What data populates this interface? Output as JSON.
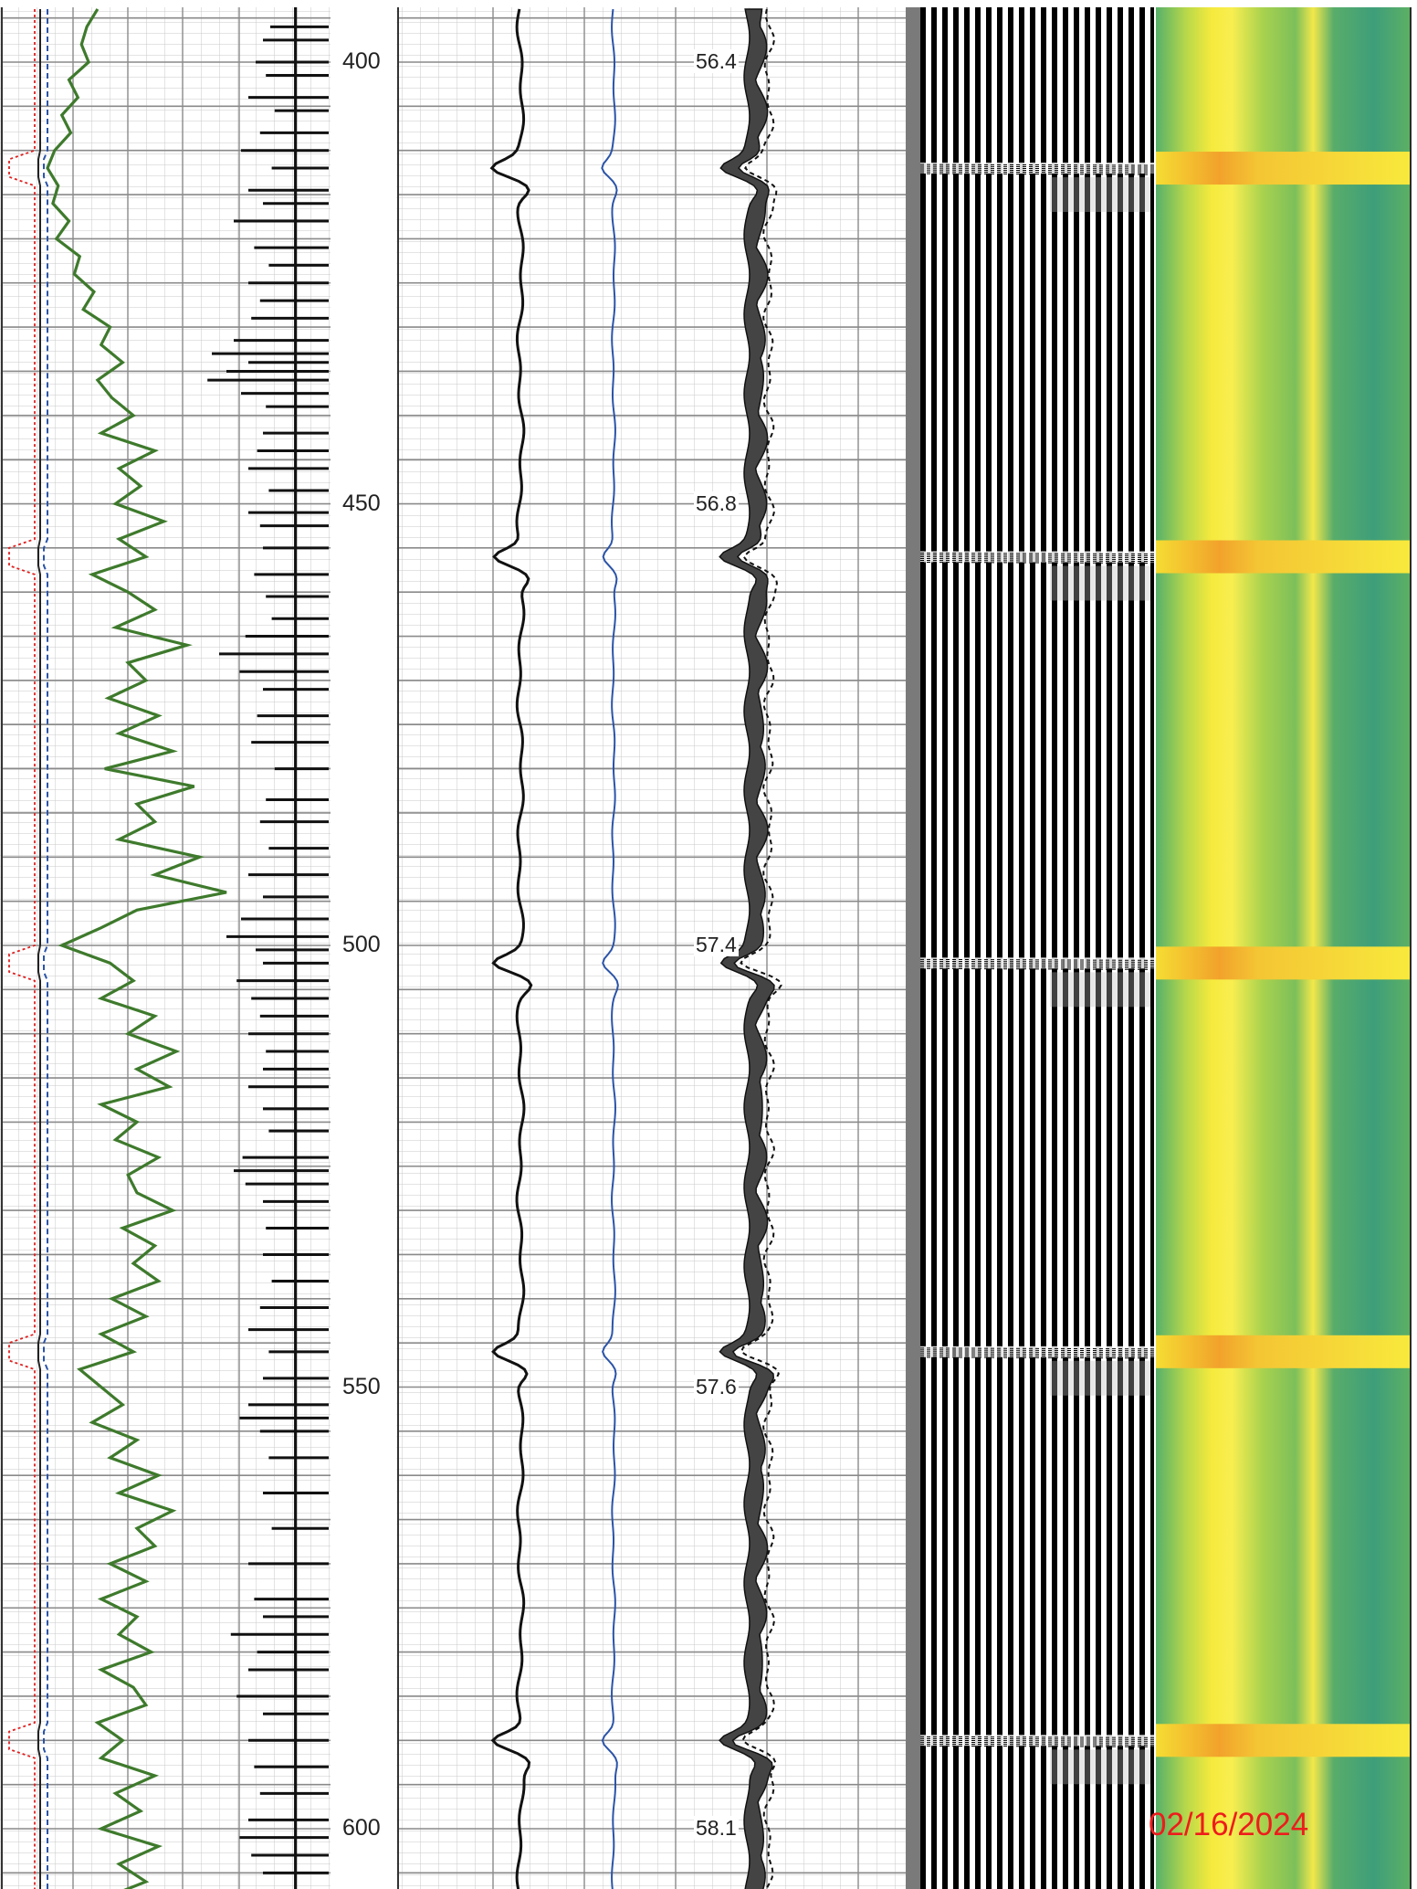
{
  "document": {
    "date_stamp": "02/16/2024",
    "date_color": "#ee1c1c"
  },
  "chart_data": {
    "type": "line",
    "depth_range": [
      394,
      614
    ],
    "depth_ticks": [
      400,
      450,
      500,
      550,
      600
    ],
    "depth_labels": [
      "400",
      "450",
      "500",
      "550",
      "600"
    ],
    "collar_depths": [
      412,
      456,
      502,
      546,
      590
    ],
    "cbl_annotations": [
      {
        "depth": 400,
        "value": "56.4"
      },
      {
        "depth": 450,
        "value": "56.8"
      },
      {
        "depth": 500,
        "value": "57.4"
      },
      {
        "depth": 550,
        "value": "57.6"
      },
      {
        "depth": 600,
        "value": "58.1"
      }
    ],
    "gamma_ray_trace": [
      [
        394,
        0.28
      ],
      [
        396,
        0.22
      ],
      [
        398,
        0.19
      ],
      [
        400,
        0.23
      ],
      [
        402,
        0.12
      ],
      [
        404,
        0.17
      ],
      [
        406,
        0.08
      ],
      [
        408,
        0.13
      ],
      [
        410,
        0.04
      ],
      [
        412,
        0.0
      ],
      [
        414,
        0.06
      ],
      [
        416,
        0.03
      ],
      [
        418,
        0.12
      ],
      [
        420,
        0.05
      ],
      [
        422,
        0.18
      ],
      [
        424,
        0.15
      ],
      [
        426,
        0.26
      ],
      [
        428,
        0.2
      ],
      [
        430,
        0.35
      ],
      [
        432,
        0.3
      ],
      [
        434,
        0.42
      ],
      [
        436,
        0.28
      ],
      [
        438,
        0.36
      ],
      [
        440,
        0.48
      ],
      [
        442,
        0.3
      ],
      [
        444,
        0.6
      ],
      [
        446,
        0.4
      ],
      [
        448,
        0.52
      ],
      [
        450,
        0.38
      ],
      [
        452,
        0.65
      ],
      [
        454,
        0.4
      ],
      [
        456,
        0.55
      ],
      [
        458,
        0.25
      ],
      [
        460,
        0.45
      ],
      [
        462,
        0.6
      ],
      [
        464,
        0.38
      ],
      [
        466,
        0.78
      ],
      [
        468,
        0.45
      ],
      [
        470,
        0.55
      ],
      [
        472,
        0.34
      ],
      [
        474,
        0.62
      ],
      [
        476,
        0.4
      ],
      [
        478,
        0.7
      ],
      [
        480,
        0.32
      ],
      [
        482,
        0.82
      ],
      [
        484,
        0.5
      ],
      [
        486,
        0.6
      ],
      [
        488,
        0.4
      ],
      [
        490,
        0.85
      ],
      [
        492,
        0.6
      ],
      [
        494,
        1.0
      ],
      [
        496,
        0.5
      ],
      [
        498,
        0.3
      ],
      [
        500,
        0.08
      ],
      [
        502,
        0.35
      ],
      [
        504,
        0.48
      ],
      [
        506,
        0.3
      ],
      [
        508,
        0.6
      ],
      [
        510,
        0.45
      ],
      [
        512,
        0.72
      ],
      [
        514,
        0.5
      ],
      [
        516,
        0.68
      ],
      [
        518,
        0.3
      ],
      [
        520,
        0.5
      ],
      [
        522,
        0.38
      ],
      [
        524,
        0.62
      ],
      [
        526,
        0.45
      ],
      [
        528,
        0.5
      ],
      [
        530,
        0.7
      ],
      [
        532,
        0.42
      ],
      [
        534,
        0.6
      ],
      [
        536,
        0.48
      ],
      [
        538,
        0.62
      ],
      [
        540,
        0.36
      ],
      [
        542,
        0.55
      ],
      [
        544,
        0.3
      ],
      [
        546,
        0.48
      ],
      [
        548,
        0.18
      ],
      [
        550,
        0.3
      ],
      [
        552,
        0.42
      ],
      [
        554,
        0.25
      ],
      [
        556,
        0.5
      ],
      [
        558,
        0.35
      ],
      [
        560,
        0.62
      ],
      [
        562,
        0.4
      ],
      [
        564,
        0.7
      ],
      [
        566,
        0.5
      ],
      [
        568,
        0.6
      ],
      [
        570,
        0.35
      ],
      [
        572,
        0.55
      ],
      [
        574,
        0.3
      ],
      [
        576,
        0.5
      ],
      [
        578,
        0.4
      ],
      [
        580,
        0.58
      ],
      [
        582,
        0.3
      ],
      [
        584,
        0.48
      ],
      [
        586,
        0.55
      ],
      [
        588,
        0.28
      ],
      [
        590,
        0.42
      ],
      [
        592,
        0.3
      ],
      [
        594,
        0.6
      ],
      [
        596,
        0.38
      ],
      [
        598,
        0.52
      ],
      [
        600,
        0.3
      ],
      [
        602,
        0.62
      ],
      [
        604,
        0.4
      ],
      [
        606,
        0.55
      ],
      [
        608,
        0.3
      ],
      [
        610,
        0.45
      ],
      [
        612,
        0.25
      ],
      [
        614,
        0.4
      ]
    ],
    "neutron_ticks": [
      [
        396,
        0.15
      ],
      [
        397.5,
        0.2
      ],
      [
        400,
        0.25
      ],
      [
        401.5,
        0.18
      ],
      [
        404,
        0.3
      ],
      [
        405.5,
        0.12
      ],
      [
        408,
        0.22
      ],
      [
        410,
        0.35
      ],
      [
        412,
        0.14
      ],
      [
        414.5,
        0.3
      ],
      [
        416,
        0.2
      ],
      [
        418,
        0.4
      ],
      [
        421,
        0.26
      ],
      [
        423,
        0.16
      ],
      [
        425,
        0.3
      ],
      [
        427,
        0.22
      ],
      [
        429,
        0.28
      ],
      [
        431.5,
        0.4
      ],
      [
        433,
        0.55
      ],
      [
        434,
        0.3
      ],
      [
        435,
        0.45
      ],
      [
        436,
        0.58
      ],
      [
        437.5,
        0.35
      ],
      [
        439,
        0.18
      ],
      [
        442,
        0.2
      ],
      [
        444,
        0.24
      ],
      [
        446,
        0.3
      ],
      [
        448.5,
        0.16
      ],
      [
        451,
        0.3
      ],
      [
        452.5,
        0.22
      ],
      [
        455,
        0.2
      ],
      [
        458,
        0.26
      ],
      [
        460.5,
        0.18
      ],
      [
        463,
        0.14
      ],
      [
        465,
        0.32
      ],
      [
        467,
        0.5
      ],
      [
        469,
        0.36
      ],
      [
        471,
        0.2
      ],
      [
        474,
        0.24
      ],
      [
        477,
        0.28
      ],
      [
        480,
        0.12
      ],
      [
        483.5,
        0.18
      ],
      [
        486,
        0.22
      ],
      [
        489,
        0.16
      ],
      [
        492,
        0.3
      ],
      [
        494.5,
        0.2
      ],
      [
        497,
        0.35
      ],
      [
        499,
        0.45
      ],
      [
        500.5,
        0.25
      ],
      [
        502,
        0.2
      ],
      [
        504,
        0.38
      ],
      [
        506,
        0.28
      ],
      [
        508,
        0.22
      ],
      [
        510,
        0.3
      ],
      [
        512,
        0.18
      ],
      [
        514,
        0.2
      ],
      [
        516,
        0.3
      ],
      [
        518.5,
        0.2
      ],
      [
        521,
        0.16
      ],
      [
        524,
        0.34
      ],
      [
        525.5,
        0.4
      ],
      [
        527,
        0.32
      ],
      [
        529,
        0.2
      ],
      [
        532,
        0.18
      ],
      [
        535,
        0.2
      ],
      [
        538,
        0.14
      ],
      [
        541,
        0.22
      ],
      [
        543.5,
        0.3
      ],
      [
        546,
        0.16
      ],
      [
        549,
        0.2
      ],
      [
        552,
        0.3
      ],
      [
        553.5,
        0.36
      ],
      [
        555,
        0.22
      ],
      [
        558,
        0.16
      ],
      [
        562,
        0.2
      ],
      [
        566,
        0.14
      ],
      [
        570,
        0.3
      ],
      [
        574,
        0.26
      ],
      [
        576,
        0.2
      ],
      [
        578,
        0.42
      ],
      [
        580,
        0.24
      ],
      [
        582,
        0.3
      ],
      [
        585,
        0.38
      ],
      [
        587,
        0.2
      ],
      [
        590,
        0.3
      ],
      [
        593,
        0.26
      ],
      [
        596,
        0.22
      ],
      [
        599,
        0.3
      ],
      [
        601,
        0.36
      ],
      [
        603,
        0.28
      ],
      [
        605,
        0.2
      ],
      [
        607,
        0.34
      ],
      [
        609,
        0.22
      ],
      [
        611,
        0.18
      ],
      [
        613,
        0.3
      ]
    ],
    "collar_track": {
      "amplitude_levels": [
        0.5,
        0.85
      ],
      "color_main": "#111111",
      "color_secondary": "#2b54a8"
    },
    "vdl": {
      "type": "variable-density",
      "colors": [
        "#000000",
        "#ffffff"
      ]
    },
    "cement_map": {
      "type": "heatmap",
      "colors": [
        "#2f9a7f",
        "#7cc35a",
        "#f7ec3c",
        "#f39a2a"
      ]
    },
    "grid": true
  }
}
